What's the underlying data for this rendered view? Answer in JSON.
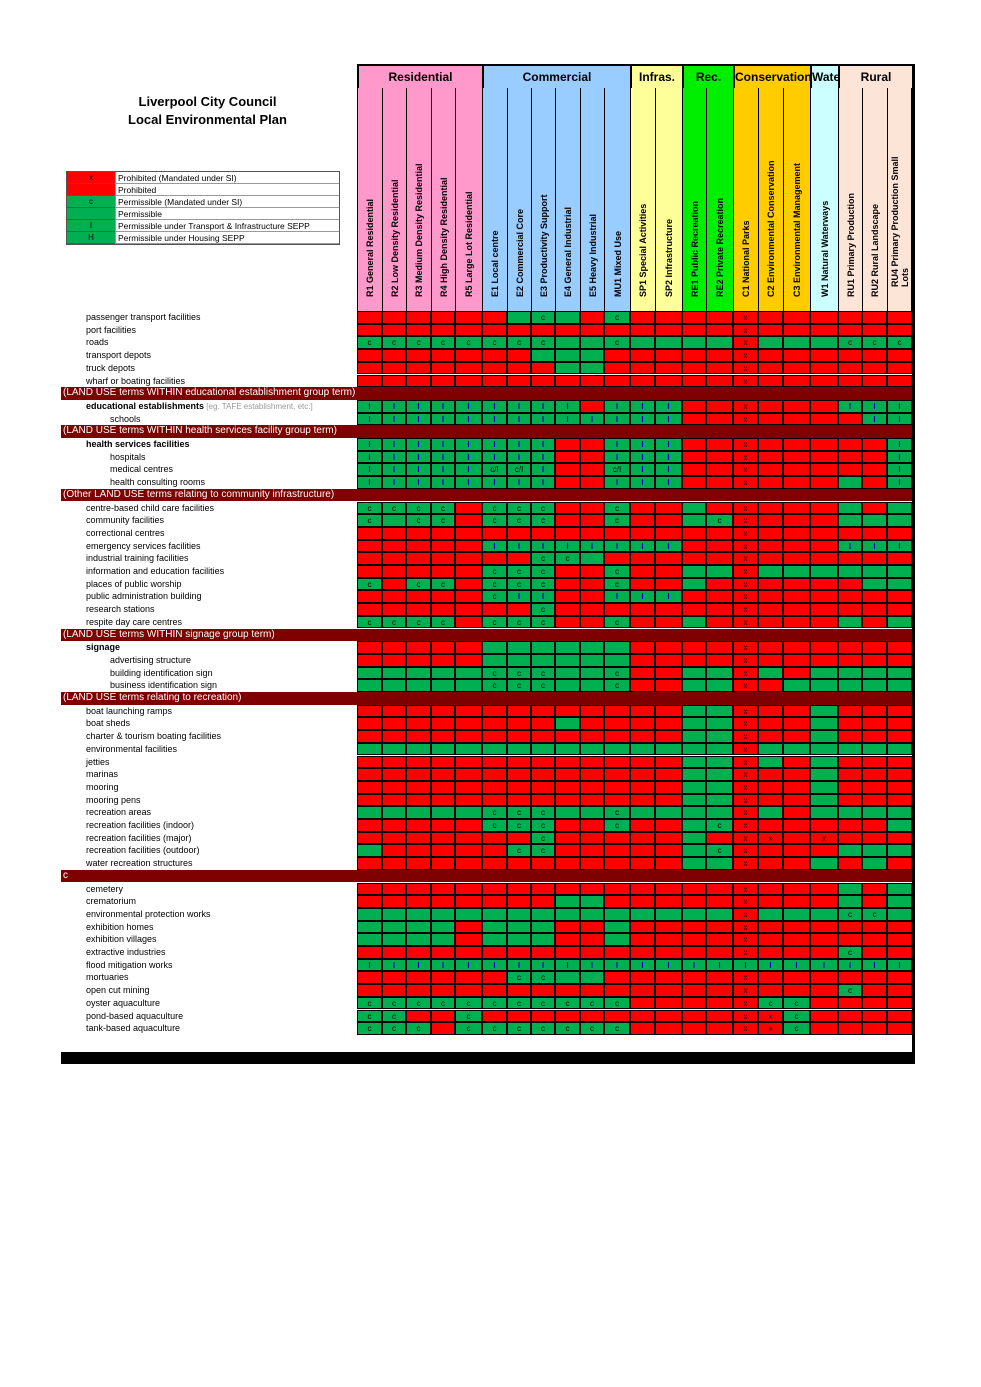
{
  "title_line1": "Liverpool City Council",
  "title_line2": "Local Environmental Plan",
  "legend": [
    {
      "symbol": "x",
      "color": "#ff0000",
      "label": "Prohibited (Mandated under SI)"
    },
    {
      "symbol": "",
      "color": "#ff0000",
      "label": "Prohibited"
    },
    {
      "symbol": "c",
      "color": "#00b050",
      "label": " Permissible (Mandated under SI)"
    },
    {
      "symbol": "",
      "color": "#00b050",
      "label": "Permissible"
    },
    {
      "symbol": "I",
      "color": "#00b050",
      "label": "Permissible under Transport & Infrastructure SEPP"
    },
    {
      "symbol": "H",
      "color": "#00b050",
      "label": "Permissible under Housing SEPP"
    }
  ],
  "groups": [
    {
      "name": "Residential",
      "color": "#ff99cc",
      "span": 5
    },
    {
      "name": "Commercial",
      "color": "#99ccff",
      "span": 6
    },
    {
      "name": "Infras.",
      "color": "#ffff99",
      "span": 2
    },
    {
      "name": "Rec.",
      "color": "#00ee00",
      "span": 2
    },
    {
      "name": "Conservation",
      "color": "#ffcc00",
      "span": 3
    },
    {
      "name": "Wate",
      "color": "#ccffff",
      "span": 1
    },
    {
      "name": "Rural",
      "color": "#fce4d6",
      "span": 3
    }
  ],
  "zones": [
    "R1 General Residential",
    "R2 Low Density Residential",
    "R3 Medium Density Residential",
    "R4 High Density Residential",
    "R5 Large Lot Residential",
    "E1 Local centre",
    "E2 Commercial Core",
    "E3 Productivity Support",
    "E4 General Industrial",
    "E5 Heavy Industrial",
    "MU1 Mixed Use",
    "SP1 Special Activities",
    "SP2 Infrastructure",
    "RE1 Public Recreation",
    "RE2 Private Recreation",
    "C1 National Parks",
    "C2 Environmental Conservation",
    "C3 Environmental Management",
    "W1 Natural Waterways",
    "RU1 Primary Production",
    "RU2 Rural Landscape",
    "RU4 Primary Production Small Lots"
  ],
  "colors": {
    "prohibited": "#ff0000",
    "permissible": "#00b050",
    "separator": "#7f0000"
  },
  "rows": [
    {
      "label": "passenger transport facilities",
      "c": "RRRRR RGgGRg RR RR xRR R RRR"
    },
    {
      "label": "port facilities",
      "c": "RRRRR RRRRRR RR RR xRR R RRR"
    },
    {
      "label": "roads",
      "c": "ggggg gggGGg GG GG xGG G ggg"
    },
    {
      "label": "transport depots",
      "c": "RRRRR RRGGGR RR RR xRR R RRR"
    },
    {
      "label": "truck depots",
      "c": "RRRRR RRRGGR RR RR xRR R RRR"
    },
    {
      "label": "wharf or boating facilities",
      "c": "RRRRR RRRRRR RR RR xRR R RRR"
    },
    {
      "sep": "(LAND USE terms WITHIN educational establishment group term)"
    },
    {
      "label": "educational establishments",
      "note": " [eg. TAFE establishment, etc.]",
      "bold": true,
      "c": "IIIII IIIIRI II RR xRR R III"
    },
    {
      "label": "schools",
      "indent": true,
      "c": "IIIII IIIIII II RR xRR R RII"
    },
    {
      "sep": "(LAND USE terms WITHIN health services facility group term)"
    },
    {
      "label": "health services facilities",
      "bold": true,
      "c": "IIIII IIIRRI II RR xRR R RRI"
    },
    {
      "label": "hospitals",
      "indent": true,
      "c": "IIIII IIIRRI II RR xRR R RRI"
    },
    {
      "label": "medical centres",
      "indent": true,
      "c": "IIIII mmIRRm II RR xRR R RRI"
    },
    {
      "label": "health consulting rooms",
      "indent": true,
      "c": "IIIII IIIRRI II RR xRR R GRI"
    },
    {
      "sep": "(Other LAND USE terms relating to community infrastructure)"
    },
    {
      "label": "centre-based child care facilities",
      "c": "ggggR gggRRg RR GR xRR R GRG"
    },
    {
      "label": "community facilities",
      "c": "gGggR gggRRg RR Gg xRR R GGG"
    },
    {
      "label": "correctional centres",
      "c": "RRRRR RRRRRR RR RR xRR R RRR"
    },
    {
      "label": "emergency services facilities",
      "c": "RRRRR IIIIII II RR xRR R III"
    },
    {
      "label": "industrial training facilities",
      "c": "RRRRR RRggGR RR RR xRR R RRR"
    },
    {
      "label": "information and education facilities",
      "c": "RRRRR gggRRg RR GG xGG G GGG"
    },
    {
      "label": "places of public worship",
      "c": "gRggR gggRRg RR GR xRR R RGG"
    },
    {
      "label": "public administration building",
      "c": "RRRRR gIIRRI II RR xRR R RRR"
    },
    {
      "label": "research stations",
      "c": "RRRRR RRgRRR RR RR xRR R RRR"
    },
    {
      "label": "respite day care centres",
      "c": "ggggR gggRRg RR GR xRR R GRG"
    },
    {
      "sep": "(LAND USE terms WITHIN signage group term)"
    },
    {
      "label": "signage",
      "bold": true,
      "c": "RRRRR GGGGGG RR RR xRR R RRR"
    },
    {
      "label": "advertising structure",
      "indent": true,
      "c": "RRRRR GGGGGG RR RR xRR R RRR"
    },
    {
      "label": "building identification sign",
      "indent": true,
      "c": "GGGGG gggGGg RR GG xGR G GGG"
    },
    {
      "label": "business identification sign",
      "indent": true,
      "c": "GGGGG gggGGg RR GG xRG G GGG"
    },
    {
      "sep": "(LAND USE terms relating to recreation)"
    },
    {
      "label": "boat launching ramps",
      "c": "RRRRR RRRRRR RR GG xRR G RRR"
    },
    {
      "label": "boat sheds",
      "c": "RRRRR RRRGRR RR GG xRR G RRR"
    },
    {
      "label": "charter & tourism boating facilities",
      "c": "RRRRR RRRRRR RR GG xRR G RRR"
    },
    {
      "label": "environmental facilities",
      "c": "GGGGG GGGGGG GG GG xGG G GGG"
    },
    {
      "label": "jetties",
      "c": "RRRRR RRRRRR RR GG xGR G RRR"
    },
    {
      "label": "marinas",
      "c": "RRRRR RRRRRR RR GG xRR G RRR"
    },
    {
      "label": "mooring",
      "c": "RRRRR RRRRRR RR GG xRR G RRR"
    },
    {
      "label": "mooring pens",
      "c": "RRRRR RRRRRR RR GG xRR G RRR"
    },
    {
      "label": "recreation areas",
      "c": "GGGGG gggGGg GG GG xGR G GGG"
    },
    {
      "label": "recreation facilities (indoor)",
      "c": "RRRRR gggRRg RR Gg xRR R RRG"
    },
    {
      "label": "recreation facilities (major)",
      "c": "RRRRR RRgRRR RR GR xxR x RRR"
    },
    {
      "label": "recreation facilities (outdoor)",
      "c": "GRRRR RggRRR RR Gg xRR R GGG"
    },
    {
      "label": "water recreation structures",
      "c": "RRRRR RRRRRR RR GG xRR G RGR"
    },
    {
      "sep": "c"
    },
    {
      "label": "cemetery",
      "c": "RRRRR RRRRRR RR RR xRR R GRG"
    },
    {
      "label": "crematorium",
      "c": "RRRRR RRRGGR RR RR xRR R GRG"
    },
    {
      "label": "environmental protection works",
      "c": "GGGGG GGGGGG GG GG xGG G ggG"
    },
    {
      "label": "exhibition homes",
      "c": "GGGGR GGGRRG RR RR xRR R RRR"
    },
    {
      "label": "exhibition villages",
      "c": "GGGGR GGGRRG RR RR xRR R RRR"
    },
    {
      "label": "extractive industries",
      "c": "RRRRR RRRRRR RR RR xRR R gRR"
    },
    {
      "label": "flood mitigation works",
      "c": "IIIII IIIIII II II III I III"
    },
    {
      "label": "mortuaries",
      "c": "RRRRR RggGGR RR RR xRR R RRR"
    },
    {
      "label": "open cut mining",
      "c": "RRRRR RRRRRR RR RR xRR R gRR"
    },
    {
      "label": "oyster aquaculture",
      "c": "ggggg gggggg RR RR xgg R RRR"
    },
    {
      "label": "pond-based aquaculture",
      "c": "ggRRg RRRRRR RR RR xxg R RRR"
    },
    {
      "label": "tank-based aquaculture",
      "c": "gggRg gggggg RR RR xxg R RRR"
    }
  ]
}
